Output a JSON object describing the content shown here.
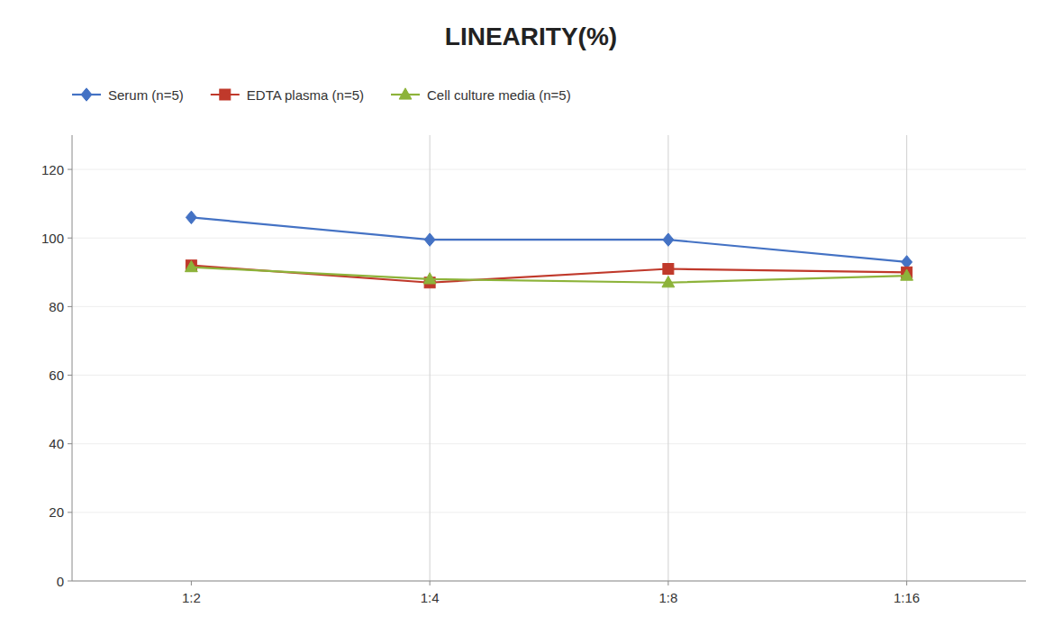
{
  "chart_data": {
    "type": "line",
    "title": "LINEARITY(%)",
    "categories": [
      "1:2",
      "1:4",
      "1:8",
      "1:16"
    ],
    "series": [
      {
        "name": "Serum (n=5)",
        "color": "#4472C4",
        "marker": "diamond",
        "values": [
          106,
          99.5,
          99.5,
          93
        ]
      },
      {
        "name": "EDTA plasma (n=5)",
        "color": "#C0392B",
        "marker": "square",
        "values": [
          92,
          87,
          91,
          90
        ]
      },
      {
        "name": "Cell culture media (n=5)",
        "color": "#8DB33A",
        "marker": "triangle",
        "values": [
          91.5,
          88,
          87,
          89
        ]
      }
    ],
    "ylim": [
      0,
      130
    ],
    "yticks": [
      0,
      20,
      40,
      60,
      80,
      100,
      120
    ],
    "grid": true,
    "legend": "top"
  }
}
